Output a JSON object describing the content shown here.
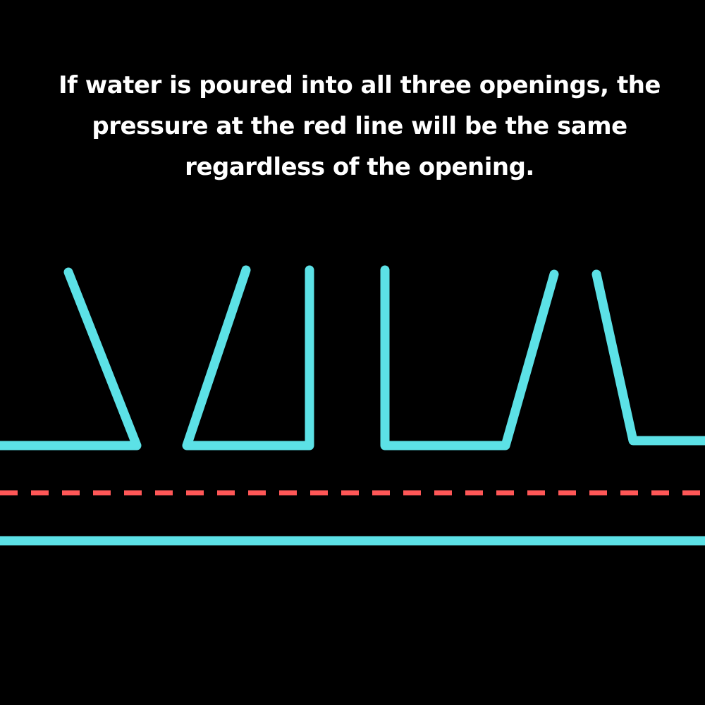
{
  "caption": {
    "lines": [
      "If water is poured into all three openings, the",
      "pressure at the red line will be the same",
      "regardless of the opening."
    ]
  },
  "colors": {
    "background": "#000000",
    "text": "#ffffff",
    "vessel": "#5ce1e6",
    "reference_line": "#ff5757"
  },
  "diagram": {
    "openings": 3,
    "reference_line_style": "dashed"
  }
}
